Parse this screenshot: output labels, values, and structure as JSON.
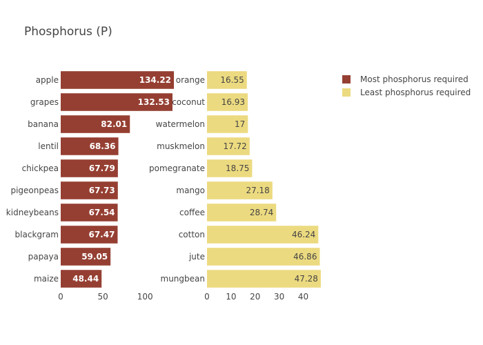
{
  "chart_data": {
    "type": "bar",
    "orientation": "horizontal",
    "title": "Phosphorus (P)",
    "legend_position": "top-right",
    "grid": false,
    "panels": [
      {
        "series_name": "Most phosphorus required",
        "color": "#953f32",
        "categories": [
          "apple",
          "grapes",
          "banana",
          "lentil",
          "chickpea",
          "pigeonpeas",
          "kidneybeans",
          "blackgram",
          "papaya",
          "maize"
        ],
        "values": [
          134.22,
          132.53,
          82.01,
          68.36,
          67.79,
          67.73,
          67.54,
          67.47,
          59.05,
          48.44
        ],
        "xlim": [
          0,
          135
        ],
        "ticks": [
          0,
          50,
          100
        ]
      },
      {
        "series_name": "Least phosphorus required",
        "color": "#ecda80",
        "categories": [
          "orange",
          "coconut",
          "watermelon",
          "muskmelon",
          "pomegranate",
          "mango",
          "coffee",
          "cotton",
          "jute",
          "mungbean"
        ],
        "values": [
          16.55,
          16.93,
          17,
          17.72,
          18.75,
          27.18,
          28.74,
          46.24,
          46.86,
          47.28
        ],
        "xlim": [
          0,
          47.3
        ],
        "ticks": [
          0,
          10,
          20,
          30,
          40
        ]
      }
    ]
  }
}
